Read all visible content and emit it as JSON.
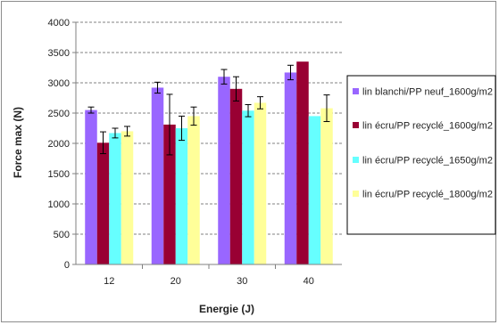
{
  "chart_data": {
    "type": "bar",
    "xlabel": "Energie (J)",
    "ylabel": "Force max (N)",
    "ylim": [
      0,
      4000
    ],
    "yticks": [
      "0",
      "500",
      "1000",
      "1500",
      "2000",
      "2500",
      "3000",
      "3500",
      "4000"
    ],
    "categories": [
      "12",
      "20",
      "30",
      "40"
    ],
    "series": [
      {
        "name": "lin blanchi/PP neuf_1600g/m2",
        "color": "#9966ff",
        "values": [
          2550,
          2920,
          3100,
          3170
        ],
        "errors": [
          50,
          90,
          120,
          120
        ]
      },
      {
        "name": "lin écru/PP recyclé_1600g/m2",
        "color": "#990033",
        "values": [
          2010,
          2310,
          2900,
          3350
        ],
        "errors": [
          180,
          500,
          200,
          0
        ]
      },
      {
        "name": "lin écru/PP recyclé_1650g/m2",
        "color": "#66ffff",
        "values": [
          2170,
          2250,
          2540,
          2450
        ],
        "errors": [
          80,
          200,
          100,
          0
        ]
      },
      {
        "name": "lin écru/PP recyclé_1800g/m2",
        "color": "#ffff99",
        "values": [
          2200,
          2450,
          2670,
          2580
        ],
        "errors": [
          80,
          150,
          100,
          220
        ]
      }
    ],
    "grid": true,
    "legend": "right"
  }
}
